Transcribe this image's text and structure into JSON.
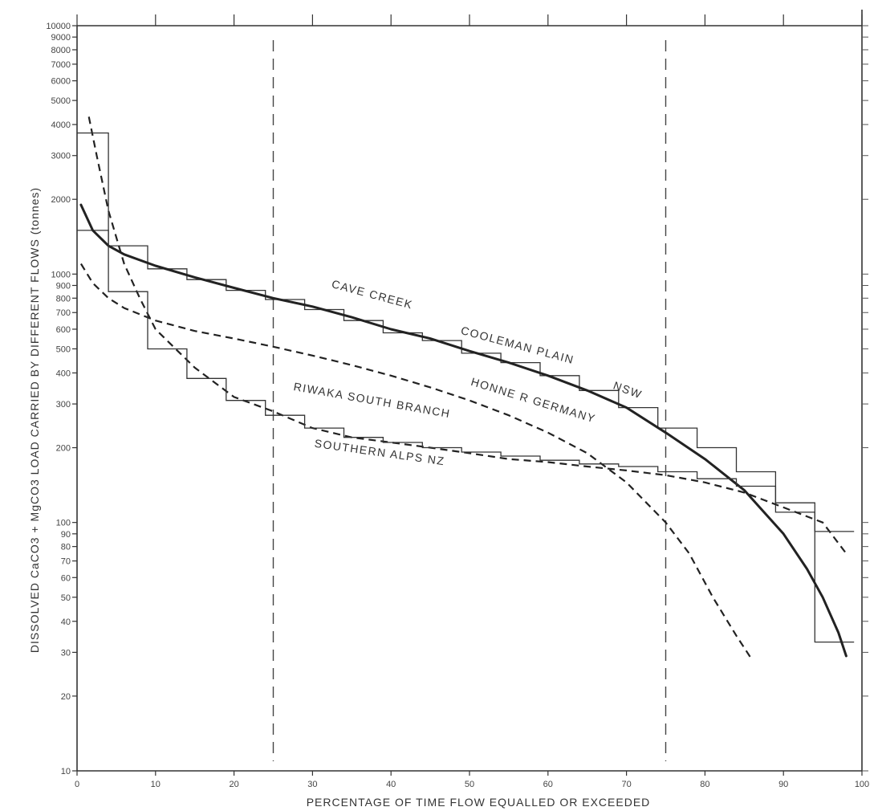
{
  "chart_data": {
    "type": "line",
    "xlabel": "PERCENTAGE    OF TIME  FLOW EQUALLED    OR     EXCEEDED",
    "ylabel": "DISSOLVED    CaCO3  +  MgCO3    LOAD   CARRIED BY   DIFFERENT   FLOWS   (tonnes)",
    "xlim": [
      0,
      100
    ],
    "ylim": [
      10,
      10000
    ],
    "yscale": "log",
    "grid": false,
    "x_ticks": [
      0,
      10,
      20,
      30,
      40,
      50,
      60,
      70,
      80,
      90,
      100
    ],
    "x_tick_labels": [
      "0",
      "10",
      "20",
      "30",
      "40",
      "50",
      "60",
      "70",
      "80",
      "90",
      "100"
    ],
    "y_ticks": [
      10,
      20,
      30,
      40,
      50,
      60,
      70,
      80,
      90,
      100,
      200,
      300,
      400,
      500,
      600,
      700,
      800,
      900,
      1000,
      2000,
      3000,
      4000,
      5000,
      6000,
      7000,
      8000,
      9000,
      10000
    ],
    "y_tick_labels": [
      "10",
      "20",
      "30",
      "40",
      "50",
      "60",
      "70",
      "80",
      "90",
      "100",
      "200",
      "300",
      "400",
      "500",
      "600",
      "700",
      "800",
      "900",
      "1000",
      "2000",
      "3000",
      "4000",
      "5000",
      "6000",
      "7000",
      "8000",
      "9000",
      "10000"
    ],
    "reference_lines_x": [
      25,
      75
    ],
    "series": [
      {
        "name": "CAVE   CREEK   COOLEMAN   PLAIN   NSW",
        "style": "solid",
        "smooth": {
          "x": [
            0.5,
            2,
            4,
            6,
            10,
            15,
            20,
            25,
            30,
            35,
            40,
            45,
            50,
            55,
            60,
            65,
            70,
            75,
            80,
            85,
            90,
            93,
            95,
            97,
            98
          ],
          "y": [
            1900,
            1500,
            1300,
            1200,
            1080,
            970,
            880,
            800,
            740,
            670,
            600,
            550,
            490,
            440,
            390,
            340,
            290,
            230,
            180,
            135,
            90,
            65,
            50,
            36,
            29
          ]
        },
        "steps": {
          "x": [
            0,
            4,
            4,
            9,
            9,
            14,
            14,
            19,
            19,
            24,
            24,
            29,
            29,
            34,
            34,
            39,
            39,
            44,
            44,
            49,
            49,
            54,
            54,
            59,
            59,
            64,
            64,
            69,
            69,
            74,
            74,
            79,
            79,
            84,
            84,
            89,
            89,
            94,
            94,
            99
          ],
          "y": [
            1500,
            1500,
            1300,
            1300,
            1050,
            1050,
            950,
            950,
            860,
            860,
            790,
            790,
            720,
            720,
            650,
            650,
            580,
            580,
            540,
            540,
            480,
            480,
            440,
            440,
            390,
            390,
            340,
            340,
            290,
            290,
            240,
            240,
            200,
            200,
            160,
            160,
            110,
            110,
            33,
            33
          ]
        }
      },
      {
        "name": "HONNE R GERMANY",
        "style": "dashed",
        "x": [
          0.5,
          2,
          4,
          6,
          10,
          15,
          20,
          25,
          30,
          35,
          40,
          45,
          50,
          55,
          60,
          65,
          70,
          75,
          78,
          81,
          84,
          86
        ],
        "y": [
          1100,
          920,
          800,
          730,
          650,
          590,
          550,
          510,
          470,
          430,
          390,
          350,
          310,
          270,
          230,
          190,
          145,
          100,
          75,
          50,
          35,
          28
        ]
      },
      {
        "name": "RIWAKA  SOUTH  BRANCH",
        "style": "dashed",
        "x": [
          1.5,
          2.5,
          4,
          6,
          8,
          10,
          15,
          20,
          25,
          30,
          35,
          40,
          45,
          50,
          55,
          60,
          65,
          70,
          75,
          80,
          85,
          90,
          95,
          98
        ],
        "y": [
          4300,
          3000,
          1800,
          1100,
          800,
          600,
          420,
          320,
          280,
          240,
          220,
          210,
          200,
          190,
          180,
          175,
          168,
          162,
          155,
          145,
          132,
          115,
          100,
          75
        ]
      },
      {
        "name": "SOUTHERN ALPS NZ",
        "style": "solid",
        "steps": {
          "x": [
            0,
            4,
            4,
            9,
            9,
            14,
            14,
            19,
            19,
            24,
            24,
            29,
            29,
            34,
            34,
            39,
            39,
            44,
            44,
            49,
            49,
            54,
            54,
            59,
            59,
            64,
            64,
            69,
            69,
            74,
            74,
            79,
            79,
            84,
            84,
            89,
            89,
            94,
            94,
            99
          ],
          "y": [
            3700,
            3700,
            850,
            850,
            500,
            500,
            380,
            380,
            310,
            310,
            270,
            270,
            240,
            240,
            220,
            220,
            210,
            210,
            200,
            200,
            192,
            192,
            185,
            185,
            178,
            178,
            172,
            172,
            168,
            168,
            160,
            160,
            150,
            150,
            140,
            140,
            120,
            120,
            92,
            92
          ]
        }
      }
    ],
    "annotations": [
      {
        "text": "CAVE    CREEK",
        "x": 37.5,
        "y": 800,
        "angle": 15
      },
      {
        "text": "COOLEMAN    PLAIN",
        "x": 56,
        "y": 500,
        "angle": 15
      },
      {
        "text": "NSW",
        "x": 70,
        "y": 330,
        "angle": 20
      },
      {
        "text": "HONNE R GERMANY",
        "x": 58,
        "y": 300,
        "angle": 17
      },
      {
        "text": "RIWAKA  SOUTH  BRANCH",
        "x": 37.5,
        "y": 300,
        "angle": 10
      },
      {
        "text": "SOUTHERN ALPS NZ",
        "x": 38.5,
        "y": 185,
        "angle": 8
      }
    ]
  }
}
